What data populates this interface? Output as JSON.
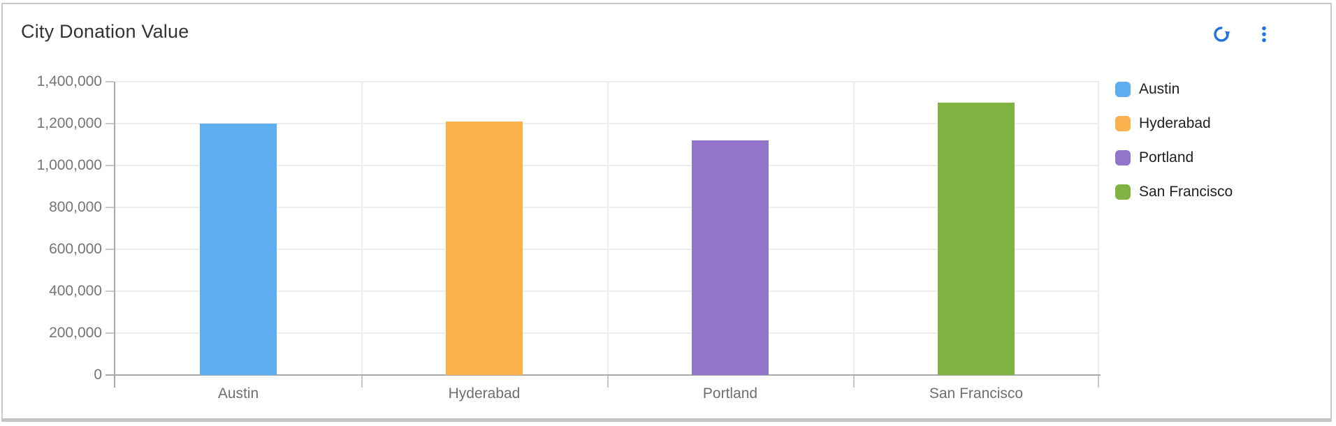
{
  "header": {
    "actions": [
      {
        "name": "refresh-icon",
        "action": "refresh"
      },
      {
        "name": "kebab-menu-icon",
        "action": "more-options"
      }
    ]
  },
  "chart_data": {
    "type": "bar",
    "title": "City Donation Value",
    "categories": [
      "Austin",
      "Hyderabad",
      "Portland",
      "San Francisco"
    ],
    "values": [
      1200000,
      1210000,
      1120000,
      1300000
    ],
    "colors": [
      "#5EADEF",
      "#FBB24E",
      "#9274CB",
      "#80B342"
    ],
    "xlabel": "",
    "ylabel": "",
    "ylim": [
      0,
      1400000
    ],
    "ytick_step": 200000,
    "ytick_labels": [
      "0",
      "200,000",
      "400,000",
      "600,000",
      "800,000",
      "1,000,000",
      "1,200,000",
      "1,400,000"
    ],
    "grid": true,
    "legend": {
      "position": "right",
      "entries": [
        "Austin",
        "Hyderabad",
        "Portland",
        "San Francisco"
      ]
    }
  },
  "colors": {
    "accent": "#1F72E3",
    "title": "#333333",
    "y_axis_label": "#757575",
    "x_axis_label": "#6E6E6E",
    "legend_text": "#212121",
    "gridline": "#EDEDED",
    "axis_tick": "#C9C9C9",
    "axis_line": "#A9A9A9",
    "card_border": "#C9C9C9",
    "card_border_bottom": "#C3C3C3"
  }
}
